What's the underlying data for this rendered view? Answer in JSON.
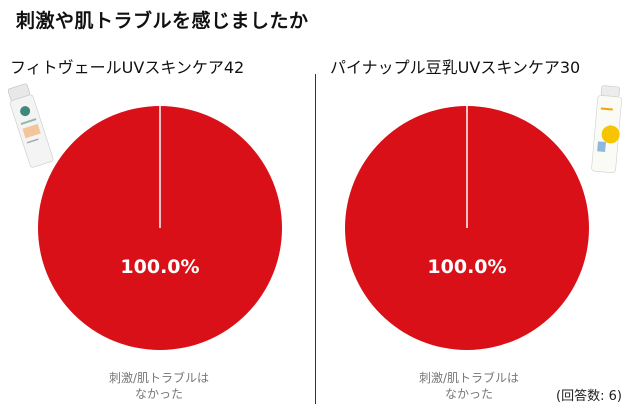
{
  "title": "刺激や肌トラブルを感じましたか",
  "response_count": "(回答数: 6)",
  "colors": {
    "slice": "#d91018",
    "divider": "#333333",
    "label": "#ffffff"
  },
  "chart_data": [
    {
      "type": "pie",
      "title": "フィトヴェールUVスキンケア42",
      "slices": [
        {
          "label": "刺激/肌トラブルはなかった",
          "value": 100.0,
          "color": "#d91018"
        }
      ],
      "data_label": "100.0%",
      "caption_lines": [
        "刺激/肌トラブルは",
        "なかった"
      ]
    },
    {
      "type": "pie",
      "title": "パイナップル豆乳UVスキンケア30",
      "slices": [
        {
          "label": "刺激/肌トラブルはなかった",
          "value": 100.0,
          "color": "#d91018"
        }
      ],
      "data_label": "100.0%",
      "caption_lines": [
        "刺激/肌トラブルは",
        "なかった"
      ]
    }
  ]
}
